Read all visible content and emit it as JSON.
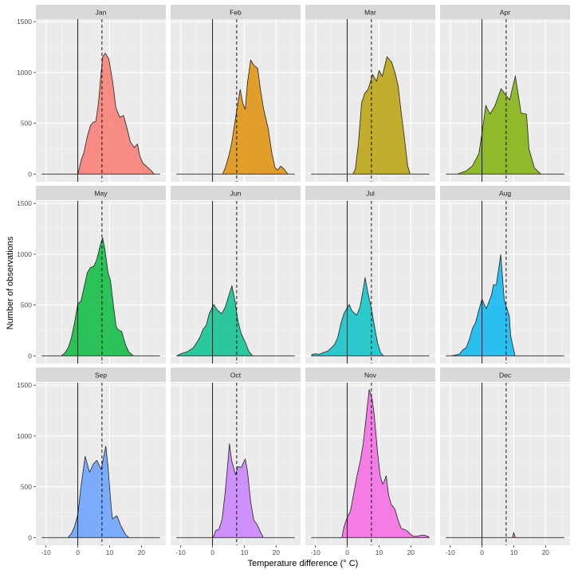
{
  "chart_data": {
    "type": "area",
    "subtype": "faceted density",
    "title": "",
    "xlabel": "Temperature difference (° C)",
    "ylabel": "Number of observations",
    "xlim": [
      -13.2,
      27.7
    ],
    "ylim": [
      -76,
      1525
    ],
    "x_ticks": [
      -10,
      0,
      10,
      20
    ],
    "y_ticks": [
      0,
      500,
      1000,
      1500
    ],
    "grid": true,
    "legend": "none",
    "reference_lines": {
      "solid_x": 0,
      "dashed_x": 7.6
    },
    "baseline_range": [
      -11.3,
      25.8
    ],
    "facets": [
      {
        "label": "Jan",
        "color": "#F8766D",
        "x": [
          0,
          0.5,
          1,
          1.9,
          3,
          4,
          4.85,
          5.7,
          6.5,
          7.2,
          7.8,
          8.6,
          9.8,
          11,
          12,
          13.2,
          14.4,
          15.5,
          16.5,
          17.75,
          18.75,
          19.5,
          20.5,
          21.5,
          22.5,
          23.2,
          24
        ],
        "y": [
          0,
          60,
          130,
          210,
          370,
          480,
          510,
          520,
          700,
          950,
          1150,
          1191,
          1130,
          900,
          650,
          560,
          576,
          450,
          320,
          260,
          296,
          180,
          105,
          80,
          50,
          30,
          0
        ]
      },
      {
        "label": "Feb",
        "color": "#DE8C00",
        "x": [
          3.2,
          4,
          5,
          6,
          7,
          8,
          8.7,
          9.5,
          10.3,
          11,
          12,
          13,
          14.2,
          15,
          16,
          17.5,
          18.7,
          19.7,
          20.5,
          21.5,
          22.5,
          23.7
        ],
        "y": [
          0,
          60,
          165,
          300,
          500,
          700,
          833,
          700,
          636,
          900,
          1123,
          1070,
          1040,
          850,
          650,
          450,
          200,
          60,
          40,
          78,
          50,
          0
        ]
      },
      {
        "label": "Mar",
        "color": "#B79F00",
        "x": [
          1.7,
          2.5,
          3.5,
          4.5,
          5.5,
          6.5,
          8,
          9.2,
          10,
          11,
          12.5,
          14,
          15,
          16,
          17,
          18,
          19,
          19.8
        ],
        "y": [
          0,
          40,
          300,
          700,
          795,
          830,
          980,
          912,
          1020,
          960,
          1155,
          1100,
          1000,
          870,
          600,
          350,
          80,
          0
        ]
      },
      {
        "label": "Apr",
        "color": "#7CAE00",
        "x": [
          -7.8,
          -5,
          -3,
          -1,
          0,
          1.2,
          2.5,
          4,
          6,
          7.3,
          8.7,
          10.5,
          12.3,
          14,
          14.8,
          16.5,
          18.5
        ],
        "y": [
          0,
          30,
          80,
          200,
          400,
          676,
          590,
          667,
          840,
          785,
          730,
          966,
          600,
          590,
          245,
          60,
          0
        ]
      },
      {
        "label": "May",
        "color": "#00BA38",
        "x": [
          -5.2,
          -4,
          -3,
          -2,
          -1,
          0,
          1,
          2,
          3,
          4,
          5,
          6,
          7,
          7.8,
          8.5,
          9.5,
          10.3,
          11,
          12,
          12.5,
          13.8,
          15,
          16,
          17.5
        ],
        "y": [
          0,
          30,
          80,
          180,
          330,
          510,
          540,
          680,
          820,
          870,
          880,
          950,
          1080,
          1163,
          1050,
          820,
          740,
          550,
          300,
          260,
          240,
          110,
          40,
          0
        ]
      },
      {
        "label": "Jun",
        "color": "#00C08B",
        "x": [
          -11.3,
          -10,
          -8,
          -6,
          -4,
          -3,
          -2,
          -1,
          0.4,
          1.5,
          2.9,
          4,
          5,
          6.1,
          7,
          8,
          9,
          10.4,
          11.5,
          12.6
        ],
        "y": [
          0,
          20,
          40,
          80,
          180,
          260,
          300,
          420,
          505,
          450,
          415,
          480,
          580,
          690,
          550,
          340,
          220,
          125,
          40,
          0
        ]
      },
      {
        "label": "Jul",
        "color": "#00BFC4",
        "x": [
          -11.3,
          -11,
          -10,
          -9,
          -8,
          -6,
          -4,
          -3,
          -2,
          -1,
          0.6,
          1.5,
          3,
          4,
          5,
          5.6,
          6.5,
          7.5,
          8.5,
          9.5,
          10.5,
          11.4
        ],
        "y": [
          0,
          15,
          20,
          15,
          25,
          50,
          110,
          180,
          320,
          420,
          505,
          440,
          400,
          480,
          650,
          770,
          620,
          480,
          300,
          130,
          30,
          0
        ]
      },
      {
        "label": "Aug",
        "color": "#00B4F0",
        "x": [
          -9.6,
          -8,
          -7,
          -6,
          -5,
          -4,
          -3,
          -2,
          -1,
          0,
          1.35,
          3,
          3.6,
          4.5,
          5.9,
          6.5,
          7,
          8.6,
          9,
          10.4
        ],
        "y": [
          0,
          10,
          20,
          60,
          80,
          160,
          270,
          330,
          450,
          557,
          463,
          600,
          700,
          700,
          997,
          750,
          550,
          390,
          200,
          0
        ]
      },
      {
        "label": "Sep",
        "color": "#619CFF",
        "x": [
          -3.1,
          -2,
          -1,
          0,
          1,
          2.3,
          3.7,
          5,
          6,
          7.35,
          8.8,
          9.5,
          10.5,
          10.9,
          12.3,
          13.5,
          15,
          16.1
        ],
        "y": [
          0,
          40,
          110,
          230,
          500,
          800,
          643,
          730,
          760,
          670,
          900,
          700,
          300,
          184,
          215,
          120,
          30,
          0
        ]
      },
      {
        "label": "Oct",
        "color": "#C77CFF",
        "x": [
          0.2,
          1,
          2,
          3,
          4,
          5,
          5.3,
          6,
          7.25,
          8,
          9,
          10.3,
          11,
          12,
          13,
          14,
          15,
          16
        ],
        "y": [
          0,
          70,
          80,
          180,
          450,
          800,
          924,
          760,
          620,
          700,
          690,
          774,
          650,
          350,
          170,
          130,
          60,
          0
        ]
      },
      {
        "label": "Nov",
        "color": "#F564E3",
        "x": [
          -1.7,
          -1,
          0,
          1,
          2,
          3,
          4,
          5,
          6,
          6.9,
          7.8,
          8.5,
          9.5,
          10.3,
          11.1,
          11.7,
          12.25,
          13,
          13.8,
          15,
          16,
          17,
          18,
          19,
          20,
          21,
          23,
          24,
          25.5,
          25.8
        ],
        "y": [
          0,
          110,
          200,
          260,
          430,
          600,
          740,
          920,
          1200,
          1457,
          1370,
          1200,
          850,
          620,
          525,
          560,
          609,
          420,
          328,
          280,
          170,
          90,
          80,
          60,
          30,
          10,
          20,
          25,
          10,
          0
        ]
      },
      {
        "label": "Dec",
        "color": "#FF64B0",
        "x": [
          9.6,
          10,
          10.3,
          10.5
        ],
        "y": [
          0,
          50,
          20,
          0
        ]
      }
    ]
  }
}
